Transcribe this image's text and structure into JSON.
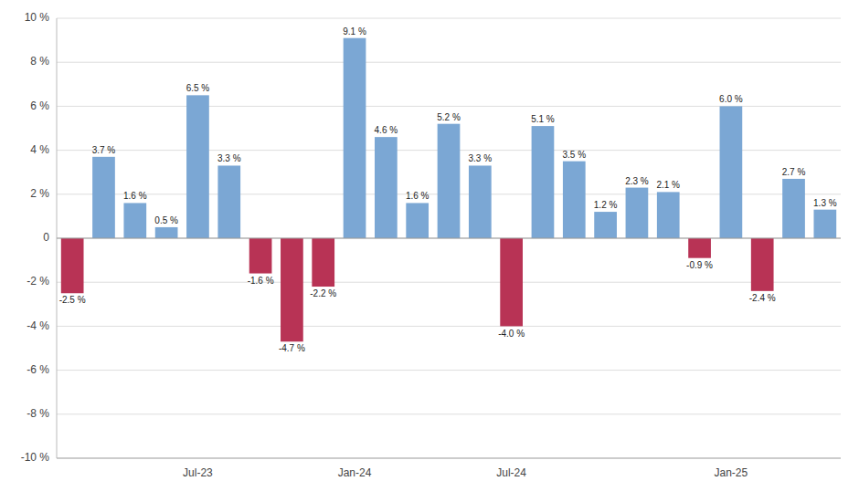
{
  "chart_data": {
    "type": "bar",
    "categories": [
      null,
      null,
      null,
      null,
      "Jul-23",
      null,
      null,
      null,
      null,
      "Jan-24",
      null,
      null,
      null,
      null,
      "Jul-24",
      null,
      null,
      null,
      null,
      null,
      null,
      "Jan-25",
      null,
      null,
      null
    ],
    "values": [
      -2.5,
      3.7,
      1.6,
      0.5,
      6.5,
      3.3,
      -1.6,
      -4.7,
      -2.2,
      9.1,
      4.6,
      1.6,
      5.2,
      3.3,
      -4.0,
      5.1,
      3.5,
      1.2,
      2.3,
      2.1,
      -0.9,
      6.0,
      -2.4,
      2.7,
      1.3
    ],
    "value_labels": [
      "-2.5 %",
      "3.7 %",
      "1.6 %",
      "0.5 %",
      "6.5 %",
      "3.3 %",
      "-1.6 %",
      "-4.7 %",
      "-2.2 %",
      "9.1 %",
      "4.6 %",
      "1.6 %",
      "5.2 %",
      "3.3 %",
      "-4.0 %",
      "5.1 %",
      "3.5 %",
      "1.2 %",
      "2.3 %",
      "2.1 %",
      "-0.9 %",
      "6.0 %",
      "-2.4 %",
      "2.7 %",
      "1.3 %"
    ],
    "colors": [
      "#B83355",
      "#7BA7D4",
      "#7BA7D4",
      "#7BA7D4",
      "#7BA7D4",
      "#7BA7D4",
      "#B83355",
      "#B83355",
      "#B83355",
      "#7BA7D4",
      "#7BA7D4",
      "#7BA7D4",
      "#7BA7D4",
      "#7BA7D4",
      "#B83355",
      "#7BA7D4",
      "#7BA7D4",
      "#7BA7D4",
      "#7BA7D4",
      "#7BA7D4",
      "#B83355",
      "#7BA7D4",
      "#B83355",
      "#7BA7D4",
      "#7BA7D4"
    ],
    "ylim": [
      -10,
      10
    ],
    "yticks": [
      {
        "value": -10,
        "label": "-10 %"
      },
      {
        "value": -8,
        "label": "-8 %"
      },
      {
        "value": -6,
        "label": "-6 %"
      },
      {
        "value": -4,
        "label": "-4 %"
      },
      {
        "value": -2,
        "label": "-2 %"
      },
      0,
      {
        "value": 2,
        "label": "2 %"
      },
      {
        "value": 4,
        "label": "4 %"
      },
      {
        "value": 6,
        "label": "6 %"
      },
      {
        "value": 8,
        "label": "8 %"
      },
      {
        "value": 10,
        "label": "10 %"
      }
    ],
    "grid": true,
    "data_labels": true
  }
}
